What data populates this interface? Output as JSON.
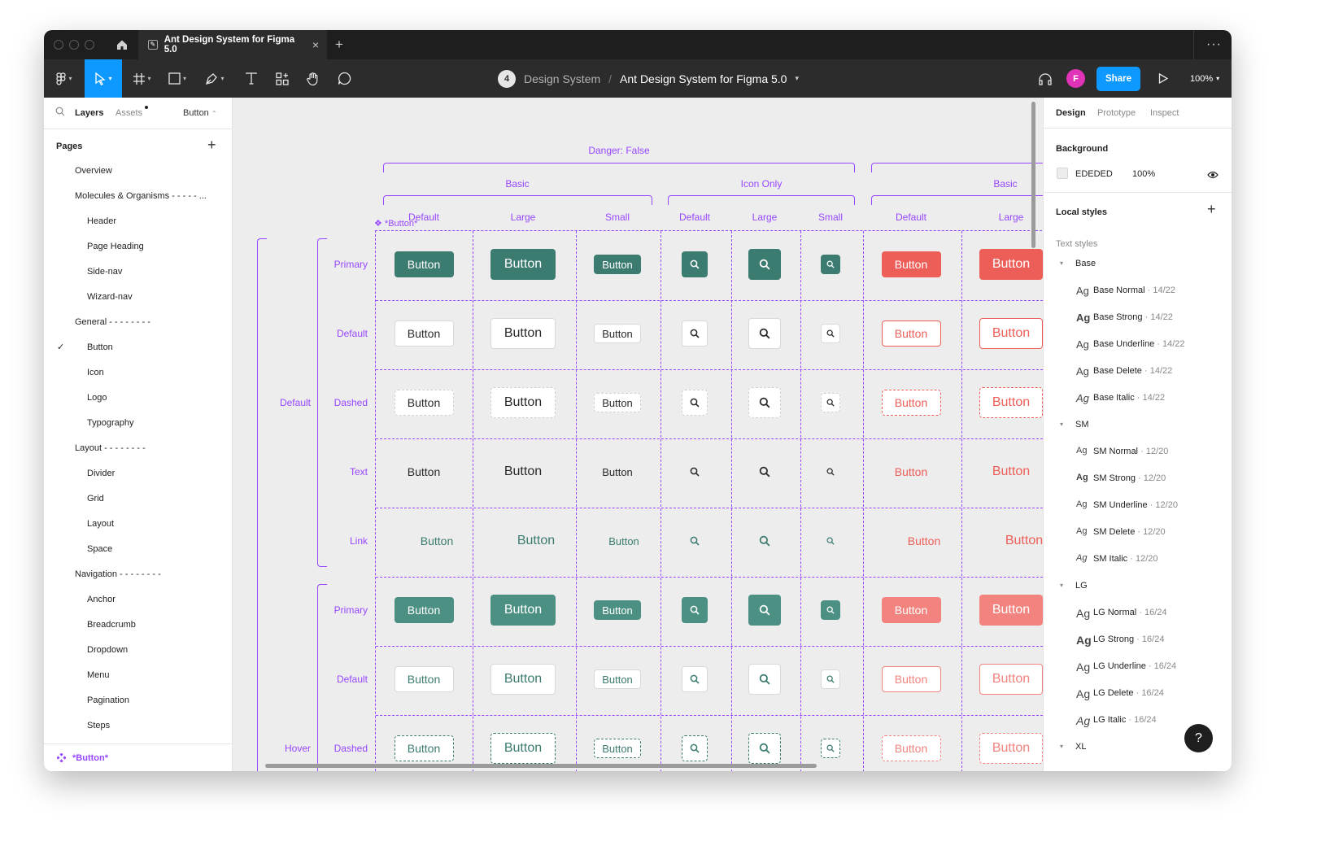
{
  "titlebar": {
    "tab_title": "Ant Design System for Figma 5.0",
    "close": "×",
    "new_tab": "+",
    "more": "···"
  },
  "toolbar": {
    "breadcrumb_count": "4",
    "project": "Design System",
    "separator": "/",
    "file": "Ant Design System for Figma 5.0",
    "avatar_initial": "F",
    "share_label": "Share",
    "zoom": "100%",
    "tools": [
      "main-menu-icon",
      "move-icon",
      "frame-icon",
      "rectangle-icon",
      "pen-icon",
      "text-icon",
      "component-icon",
      "hand-icon",
      "comment-icon"
    ]
  },
  "left_panel": {
    "tab_layers": "Layers",
    "tab_assets": "Assets",
    "page_selector": "Button",
    "pages_title": "Pages",
    "add": "+",
    "pages": [
      {
        "label": "Overview",
        "indent": 1
      },
      {
        "label": "Molecules & Organisms - - - - - ...",
        "indent": 1
      },
      {
        "label": "Header",
        "indent": 2
      },
      {
        "label": "Page Heading",
        "indent": 2
      },
      {
        "label": "Side-nav",
        "indent": 2
      },
      {
        "label": "Wizard-nav",
        "indent": 2
      },
      {
        "label": "General - - - - - - - -",
        "indent": 1
      },
      {
        "label": "Button",
        "indent": 2,
        "selected": true
      },
      {
        "label": "Icon",
        "indent": 2
      },
      {
        "label": "Logo",
        "indent": 2
      },
      {
        "label": "Typography",
        "indent": 2
      },
      {
        "label": "Layout - - - - - - - -",
        "indent": 1
      },
      {
        "label": "Divider",
        "indent": 2
      },
      {
        "label": "Grid",
        "indent": 2
      },
      {
        "label": "Layout",
        "indent": 2
      },
      {
        "label": "Space",
        "indent": 2
      },
      {
        "label": "Navigation - - - - - - - -",
        "indent": 1
      },
      {
        "label": "Anchor",
        "indent": 2
      },
      {
        "label": "Breadcrumb",
        "indent": 2
      },
      {
        "label": "Dropdown",
        "indent": 2
      },
      {
        "label": "Menu",
        "indent": 2
      },
      {
        "label": "Pagination",
        "indent": 2
      },
      {
        "label": "Steps",
        "indent": 2
      }
    ],
    "layer_name": "*Button*"
  },
  "canvas": {
    "danger_label": "Danger: False",
    "component_label": "*Button*",
    "group_labels": [
      "Basic",
      "Icon Only",
      "Basic"
    ],
    "column_labels": [
      "Default",
      "Large",
      "Small",
      "Default",
      "Large",
      "Small",
      "Default",
      "Large"
    ],
    "state_labels": [
      "Default",
      "Hover"
    ],
    "row_labels": [
      "Primary",
      "Default",
      "Dashed",
      "Text",
      "Link",
      "Primary",
      "Default",
      "Dashed"
    ],
    "button_text": "Button"
  },
  "right_panel": {
    "tabs": [
      "Design",
      "Prototype",
      "Inspect"
    ],
    "background_title": "Background",
    "background_hex": "EDEDED",
    "background_opacity": "100%",
    "background_color": "#ededed",
    "local_styles_title": "Local styles",
    "text_styles_title": "Text styles",
    "groups": [
      {
        "name": "Base",
        "styles": [
          {
            "name": "Base Normal",
            "size": "14/22"
          },
          {
            "name": "Base Strong",
            "size": "14/22"
          },
          {
            "name": "Base Underline",
            "size": "14/22"
          },
          {
            "name": "Base Delete",
            "size": "14/22"
          },
          {
            "name": "Base Italic",
            "size": "14/22"
          }
        ]
      },
      {
        "name": "SM",
        "styles": [
          {
            "name": "SM Normal",
            "size": "12/20"
          },
          {
            "name": "SM Strong",
            "size": "12/20"
          },
          {
            "name": "SM Underline",
            "size": "12/20"
          },
          {
            "name": "SM Delete",
            "size": "12/20"
          },
          {
            "name": "SM Italic",
            "size": "12/20"
          }
        ]
      },
      {
        "name": "LG",
        "styles": [
          {
            "name": "LG Normal",
            "size": "16/24"
          },
          {
            "name": "LG Strong",
            "size": "16/24"
          },
          {
            "name": "LG Underline",
            "size": "16/24"
          },
          {
            "name": "LG Delete",
            "size": "16/24"
          },
          {
            "name": "LG Italic",
            "size": "16/24"
          }
        ]
      },
      {
        "name": "XL",
        "styles": []
      }
    ],
    "help": "?"
  },
  "colors": {
    "accent": "#0d99ff",
    "component_purple": "#9747ff",
    "primary_green": "#3c7b70",
    "danger_red": "#ee5e58",
    "canvas_bg": "#ededed"
  }
}
